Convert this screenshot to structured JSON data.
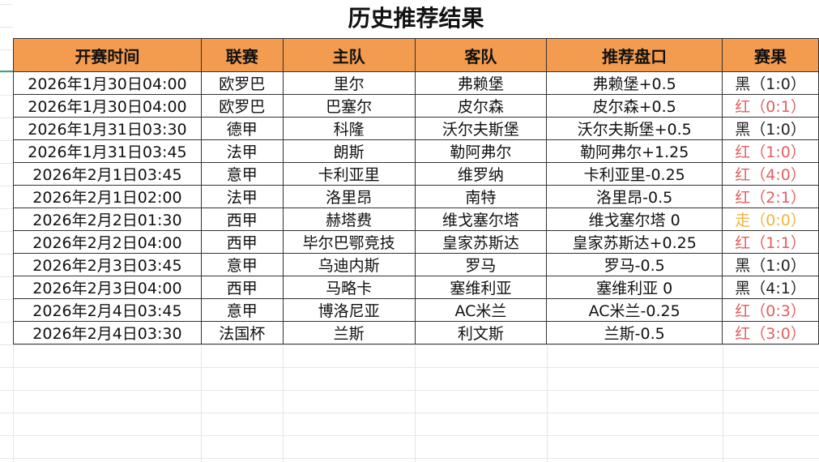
{
  "title": "历史推荐结果",
  "columns": [
    "开赛时间",
    "联赛",
    "主队",
    "客队",
    "推荐盘口",
    "赛果"
  ],
  "result_colors": {
    "黑": "#222222",
    "红": "#e06060",
    "走": "#f0b43c"
  },
  "header_color": "#f39b4e",
  "rows": [
    [
      "2026年1月30日04:00",
      "欧罗巴",
      "里尔",
      "弗赖堡",
      "弗赖堡+0.5",
      "黑（1:0）"
    ],
    [
      "2026年1月30日04:00",
      "欧罗巴",
      "巴塞尔",
      "皮尔森",
      "皮尔森+0.5",
      "红（0:1）"
    ],
    [
      "2026年1月31日03:30",
      "德甲",
      "科隆",
      "沃尔夫斯堡",
      "沃尔夫斯堡+0.5",
      "黑（1:0）"
    ],
    [
      "2026年1月31日03:45",
      "法甲",
      "朗斯",
      "勒阿弗尔",
      "勒阿弗尔+1.25",
      "红（1:0）"
    ],
    [
      "2026年2月1日03:45",
      "意甲",
      "卡利亚里",
      "维罗纳",
      "卡利亚里-0.25",
      "红（4:0）"
    ],
    [
      "2026年2月1日02:00",
      "法甲",
      "洛里昂",
      "南特",
      "洛里昂-0.5",
      "红（2:1）"
    ],
    [
      "2026年2月2日01:30",
      "西甲",
      "赫塔费",
      "维戈塞尔塔",
      "维戈塞尔塔 0",
      "走（0:0）"
    ],
    [
      "2026年2月2日04:00",
      "西甲",
      "毕尔巴鄂竞技",
      "皇家苏斯达",
      "皇家苏斯达+0.25",
      "红（1:1）"
    ],
    [
      "2026年2月3日03:45",
      "意甲",
      "乌迪内斯",
      "罗马",
      "罗马-0.5",
      "黑（1:0）"
    ],
    [
      "2026年2月3日04:00",
      "西甲",
      "马略卡",
      "塞维利亚",
      "塞维利亚 0",
      "黑（4:1）"
    ],
    [
      "2026年2月4日03:45",
      "意甲",
      "博洛尼亚",
      "AC米兰",
      "AC米兰-0.25",
      "红（0:3）"
    ],
    [
      "2026年2月4日03:30",
      "法国杯",
      "兰斯",
      "利文斯",
      "兰斯-0.5",
      "红（3:0）"
    ]
  ]
}
